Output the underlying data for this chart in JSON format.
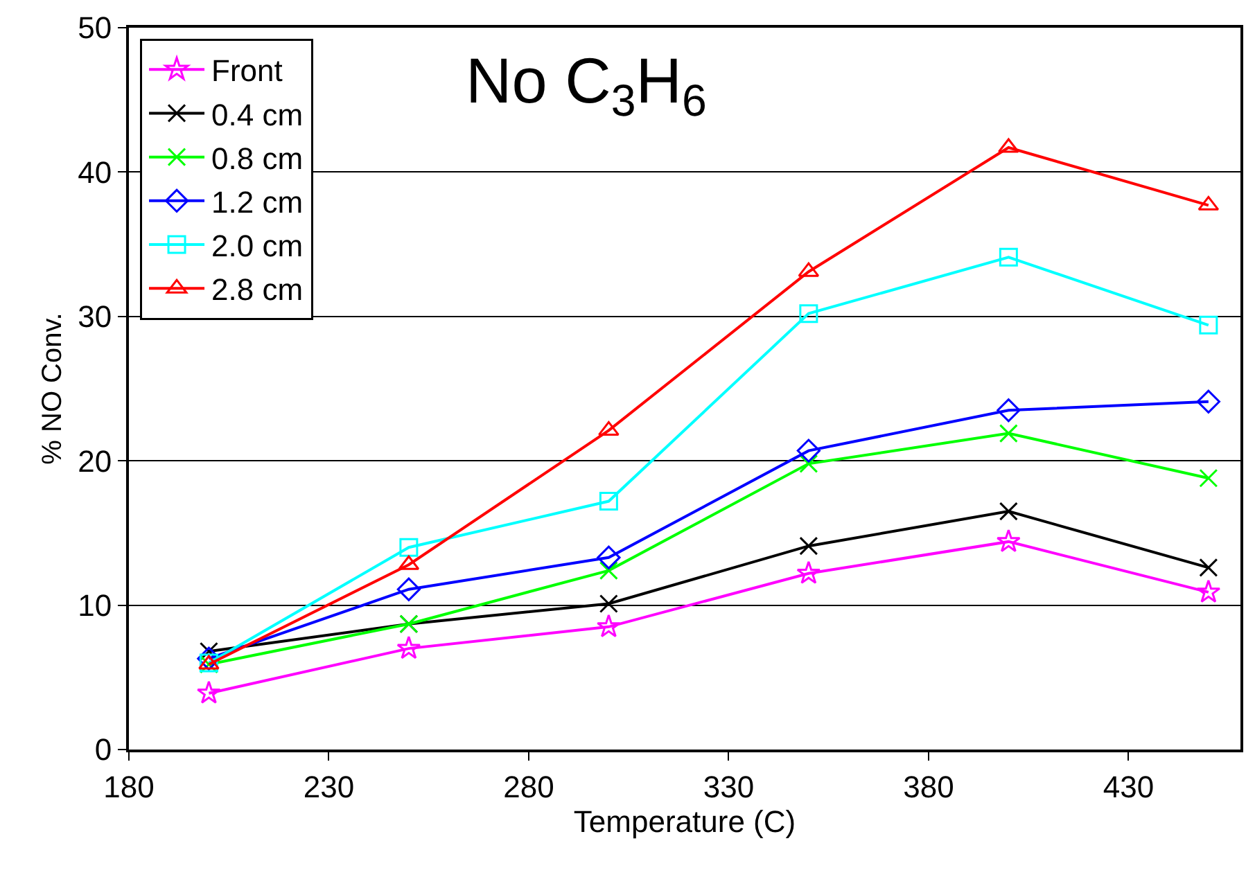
{
  "chart_data": {
    "type": "line",
    "title": "No C$_{3}$H$_{6}$",
    "xlabel": "Temperature (C)",
    "ylabel": "% NO Conv.",
    "x": [
      200,
      250,
      300,
      350,
      400,
      450
    ],
    "series": [
      {
        "name": "Front",
        "color": "#ff00ff",
        "marker": "star",
        "values": [
          3.9,
          7.0,
          8.5,
          12.2,
          14.4,
          10.9
        ]
      },
      {
        "name": "0.4 cm",
        "color": "#000000",
        "marker": "cross",
        "values": [
          6.8,
          8.7,
          10.1,
          14.1,
          16.5,
          12.6
        ]
      },
      {
        "name": "0.8 cm",
        "color": "#00ff00",
        "marker": "cross",
        "values": [
          5.9,
          8.7,
          12.4,
          19.8,
          21.9,
          18.8
        ]
      },
      {
        "name": "1.2 cm",
        "color": "#0000ff",
        "marker": "diamond",
        "values": [
          6.3,
          11.1,
          13.3,
          20.7,
          23.5,
          24.1
        ]
      },
      {
        "name": "2.0 cm",
        "color": "#00ffff",
        "marker": "square",
        "values": [
          6.0,
          14.0,
          17.2,
          30.2,
          34.1,
          29.4
        ]
      },
      {
        "name": "2.8 cm",
        "color": "#ff0000",
        "marker": "triangle",
        "values": [
          5.9,
          12.8,
          22.1,
          33.1,
          41.7,
          37.7
        ]
      }
    ],
    "xlim": [
      180,
      458
    ],
    "xticks": [
      180,
      230,
      280,
      330,
      380,
      430
    ],
    "ylim": [
      0,
      50
    ],
    "yticks": [
      0,
      10,
      20,
      30,
      40,
      50
    ],
    "grid": "y",
    "legend": "top left"
  }
}
